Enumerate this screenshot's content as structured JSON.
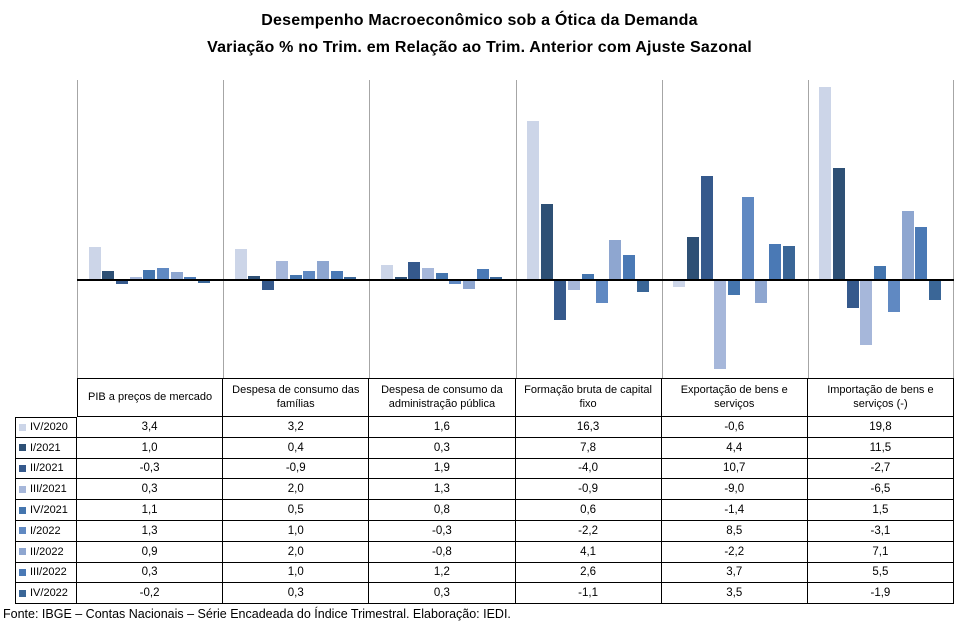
{
  "title": {
    "line1": "Desempenho Macroeconômico sob a Ótica da Demanda",
    "line2": "Variação % no Trim. em Relação ao Trim. Anterior com Ajuste Sazonal"
  },
  "footer": "Fonte: IBGE – Contas Nacionais – Série Encadeada do Índice Trimestral. Elaboração: IEDI.",
  "colors": {
    "category_separator": "#a6a6a6",
    "zero_axis": "#000000",
    "table_border": "#000000",
    "background": "#ffffff"
  },
  "chart_data": {
    "type": "bar",
    "title": "Desempenho Macroeconômico sob a Ótica da Demanda — Variação % no Trim. em Relação ao Trim. Anterior com Ajuste Sazonal",
    "categories": [
      "PIB a preços de mercado",
      "Despesa de consumo das famílias",
      "Despesa de consumo da administração pública",
      "Formação bruta de capital fixo",
      "Exportação de bens e serviços",
      "Importação de bens e serviços (-)"
    ],
    "series": [
      {
        "name": "IV/2020",
        "color": "#ccd5e8",
        "values": [
          3.4,
          3.2,
          1.6,
          16.3,
          -0.6,
          19.8
        ]
      },
      {
        "name": "I/2021",
        "color": "#2e5075",
        "values": [
          1.0,
          0.4,
          0.3,
          7.8,
          4.4,
          11.5
        ]
      },
      {
        "name": "II/2021",
        "color": "#35598c",
        "values": [
          -0.3,
          -0.9,
          1.9,
          -4.0,
          10.7,
          -2.7
        ]
      },
      {
        "name": "III/2021",
        "color": "#a6b7da",
        "values": [
          0.3,
          2.0,
          1.3,
          -0.9,
          -9.0,
          -6.5
        ]
      },
      {
        "name": "IV/2021",
        "color": "#4475ae",
        "values": [
          1.1,
          0.5,
          0.8,
          0.6,
          -1.4,
          1.5
        ]
      },
      {
        "name": "I/2022",
        "color": "#6089c2",
        "values": [
          1.3,
          1.0,
          -0.3,
          -2.2,
          8.5,
          -3.1
        ]
      },
      {
        "name": "II/2022",
        "color": "#8ea6d0",
        "values": [
          0.9,
          2.0,
          -0.8,
          4.1,
          -2.2,
          7.1
        ]
      },
      {
        "name": "III/2022",
        "color": "#4a79b5",
        "values": [
          0.3,
          1.0,
          1.2,
          2.6,
          3.7,
          5.5
        ]
      },
      {
        "name": "IV/2022",
        "color": "#3a6697",
        "values": [
          -0.2,
          0.3,
          0.3,
          -1.1,
          3.5,
          -1.9
        ]
      }
    ],
    "ylim": [
      -10,
      20.5
    ],
    "xlabel": "",
    "ylabel": "",
    "grid": "vertical category separators only, no horizontal gridlines, no value axis labels",
    "legend_position": "data table row headers with legend keys",
    "value_format": "comma-decimal, 1 decimal place"
  }
}
